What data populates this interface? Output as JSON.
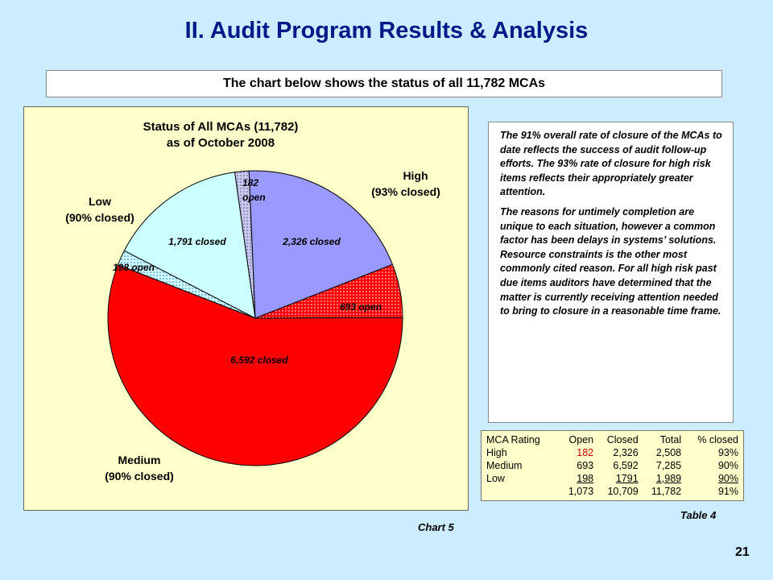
{
  "page": {
    "title": "II. Audit Program Results & Analysis",
    "subtitle": "The chart below shows the status of all 11,782 MCAs",
    "chart_caption": "Chart 5",
    "table_caption": "Table 4",
    "page_number": "21"
  },
  "narrative": {
    "paragraph1": "The 91% overall rate of closure of the MCAs to date reflects the success of audit follow-up efforts.  The 93% rate of closure for high risk items reflects their appropriately greater attention.",
    "paragraph2": "The reasons for untimely completion are unique to each situation, however a common factor has been delays in systems’ solutions. Resource constraints is the other most commonly cited reason. For all high risk past due items auditors have determined that the matter is currently receiving attention needed to bring to closure in a reasonable time frame."
  },
  "table": {
    "headers": [
      "MCA Rating",
      "Open",
      "Closed",
      "Total",
      "% closed"
    ],
    "rows": [
      [
        "High",
        "182",
        "2,326",
        "2,508",
        "93%"
      ],
      [
        "Medium",
        "693",
        "6,592",
        "7,285",
        "90%"
      ],
      [
        "Low",
        "198",
        "1791",
        "1,989",
        "90%"
      ],
      [
        "",
        "1,073",
        "10,709",
        "11,782",
        "91%"
      ]
    ]
  },
  "chart_data": {
    "type": "pie",
    "title": "Status of All MCAs (11,782)",
    "subtitle": "as of October 2008",
    "slices": [
      {
        "label": "182 open",
        "value": 182,
        "group": "High",
        "color": "#c0c0e8",
        "pattern": "dots"
      },
      {
        "label": "2,326 closed",
        "value": 2326,
        "group": "High",
        "color": "#9999ff"
      },
      {
        "label": "693 open",
        "value": 693,
        "group": "Medium",
        "color": "#ff0000",
        "pattern": "dots"
      },
      {
        "label": "6,592 closed",
        "value": 6592,
        "group": "Medium",
        "color": "#ff0000"
      },
      {
        "label": "198 open",
        "value": 198,
        "group": "Low",
        "color": "#ccffff",
        "pattern": "dots"
      },
      {
        "label": "1,791 closed",
        "value": 1791,
        "group": "Low",
        "color": "#ccffff"
      }
    ],
    "group_labels": [
      {
        "name": "High",
        "note": "(93% closed)"
      },
      {
        "name": "Medium",
        "note": "(90% closed)"
      },
      {
        "name": "Low",
        "note": "(90% closed)"
      }
    ]
  }
}
